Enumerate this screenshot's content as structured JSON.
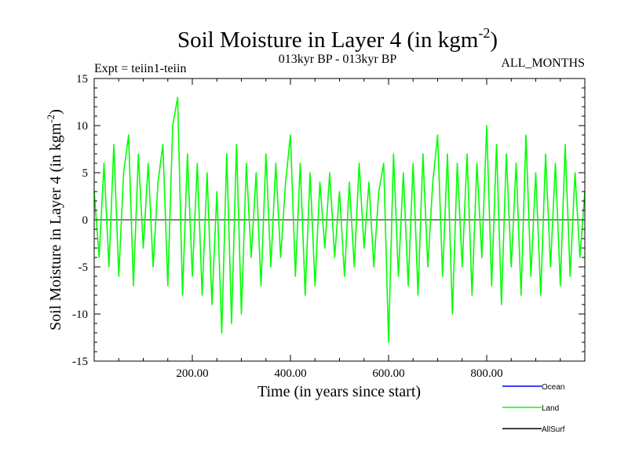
{
  "chart_data": {
    "type": "line",
    "title": "Soil Moisture in Layer 4 (in kgm",
    "title_sup": "-2",
    "title_close": ")",
    "subtitle_left": "Expt = teiin1-teiin",
    "subtitle_center": "013kyr BP - 013kyr BP",
    "subtitle_right": "ALL_MONTHS",
    "xlabel": "Time (in years since start)",
    "ylabel": "Soil Moisture in Layer 4 (in kgm",
    "ylabel_sup": "-2",
    "ylabel_close": ")",
    "xlim": [
      0,
      1000
    ],
    "ylim": [
      -15,
      15
    ],
    "x_ticks": [
      200,
      400,
      600,
      800
    ],
    "x_tick_labels": [
      "200.00",
      "400.00",
      "600.00",
      "800.00"
    ],
    "y_ticks": [
      -15,
      -10,
      -5,
      0,
      5,
      10,
      15
    ],
    "y_tick_labels": [
      "-15",
      "-10",
      "-5",
      "0",
      "5",
      "10",
      "15"
    ],
    "legend_position": "bottom-right, below plot",
    "series": [
      {
        "name": "Ocean",
        "color": "#0000ff",
        "x": [],
        "y": []
      },
      {
        "name": "Land",
        "color": "#00ff00",
        "x": [
          0,
          10,
          20,
          30,
          40,
          50,
          60,
          70,
          80,
          90,
          100,
          110,
          120,
          130,
          140,
          150,
          160,
          170,
          180,
          190,
          200,
          210,
          220,
          230,
          240,
          250,
          260,
          270,
          280,
          290,
          300,
          310,
          320,
          330,
          340,
          350,
          360,
          370,
          380,
          390,
          400,
          410,
          420,
          430,
          440,
          450,
          460,
          470,
          480,
          490,
          500,
          510,
          520,
          530,
          540,
          550,
          560,
          570,
          580,
          590,
          600,
          610,
          620,
          630,
          640,
          650,
          660,
          670,
          680,
          690,
          700,
          710,
          720,
          730,
          740,
          750,
          760,
          770,
          780,
          790,
          800,
          810,
          820,
          830,
          840,
          850,
          860,
          870,
          880,
          890,
          900,
          910,
          920,
          930,
          940,
          950,
          960,
          970,
          980,
          990,
          1000
        ],
        "y": [
          3,
          -4,
          6,
          -5,
          8,
          -6,
          5,
          9,
          -7,
          7,
          -3,
          6,
          -5,
          4,
          8,
          -7,
          10,
          13,
          -8,
          7,
          -6,
          6,
          -8,
          5,
          -9,
          3,
          -12,
          7,
          -11,
          8,
          -10,
          6,
          -4,
          5,
          -7,
          7,
          -5,
          6,
          -4,
          4,
          9,
          -6,
          6,
          -8,
          5,
          -7,
          4,
          -3,
          5,
          -4,
          3,
          -6,
          4,
          -5,
          6,
          -3,
          4,
          -5,
          3,
          6,
          -13,
          7,
          -6,
          5,
          -7,
          6,
          -8,
          7,
          -5,
          4,
          9,
          -6,
          7,
          -10,
          6,
          -5,
          7,
          -8,
          6,
          -4,
          10,
          -7,
          8,
          -9,
          7,
          -5,
          6,
          -8,
          9,
          -6,
          5,
          -8,
          7,
          -5,
          6,
          -7,
          8,
          -6,
          5,
          -4,
          3
        ]
      },
      {
        "name": "AllSurf",
        "color": "#000000",
        "x": [],
        "y": []
      }
    ]
  }
}
